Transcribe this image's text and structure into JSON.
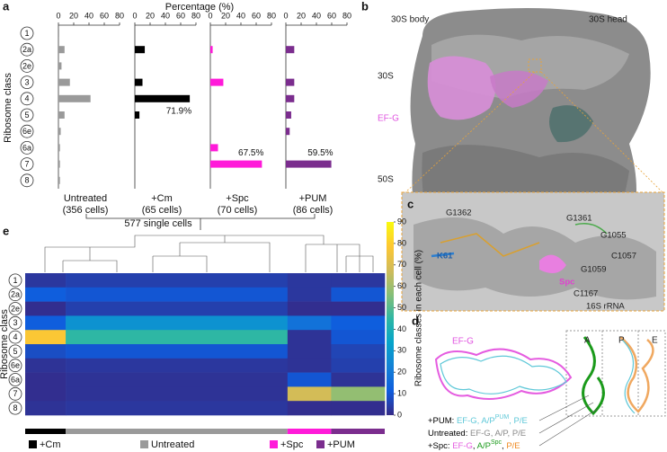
{
  "chart_data": [
    {
      "type": "bar",
      "orientation": "horizontal",
      "xlabel": "Percentage (%)",
      "ylabel": "Ribosome class",
      "categories": [
        "1",
        "2a",
        "2e",
        "3",
        "4",
        "5",
        "6e",
        "6a",
        "7",
        "8"
      ],
      "xlim": [
        0,
        80
      ],
      "xticks": [
        0,
        20,
        40,
        60,
        80
      ],
      "series": [
        {
          "name": "Untreated",
          "subtitle": "(356 cells)",
          "color": "#9a9a9a",
          "values": [
            1,
            8,
            4,
            15,
            42,
            8,
            3,
            2,
            2,
            2
          ]
        },
        {
          "name": "+Cm",
          "subtitle": "(65 cells)",
          "color": "#000000",
          "values": [
            0,
            13,
            0,
            10,
            71.9,
            6,
            0,
            0,
            0,
            0
          ],
          "value_labels": [
            null,
            null,
            null,
            null,
            "71.9%",
            null,
            null,
            null,
            null,
            null
          ]
        },
        {
          "name": "+Spc",
          "subtitle": "(70 cells)",
          "color": "#ff1ad9",
          "values": [
            0,
            3,
            0,
            17,
            0,
            0,
            0,
            10,
            67.5,
            0
          ],
          "value_labels": [
            null,
            null,
            null,
            null,
            null,
            null,
            null,
            null,
            "67.5%",
            null
          ]
        },
        {
          "name": "+PUM",
          "subtitle": "(86 cells)",
          "color": "#7b2d8e",
          "values": [
            0,
            11,
            0,
            11,
            11,
            7,
            5,
            0,
            59.5,
            0
          ],
          "value_labels": [
            null,
            null,
            null,
            null,
            null,
            null,
            null,
            null,
            "59.5%",
            null
          ]
        }
      ],
      "total_label": "577 single cells"
    },
    {
      "type": "heatmap",
      "ylabel": "Ribosome class",
      "categories": [
        "1",
        "2a",
        "2e",
        "3",
        "4",
        "5",
        "6e",
        "6a",
        "7",
        "8"
      ],
      "groups": [
        {
          "name": "+Cm",
          "cells": 65,
          "color": "#000000"
        },
        {
          "name": "Untreated",
          "cells": 356,
          "color": "#9a9a9a"
        },
        {
          "name": "+Spc",
          "cells": 70,
          "color": "#ff1ad9"
        },
        {
          "name": "+PUM",
          "cells": 86,
          "color": "#7b2d8e"
        }
      ],
      "values": [
        [
          3,
          5,
          3,
          3
        ],
        [
          12,
          10,
          3,
          10
        ],
        [
          1,
          5,
          1,
          1
        ],
        [
          12,
          28,
          18,
          12
        ],
        [
          78,
          45,
          2,
          10
        ],
        [
          8,
          10,
          2,
          6
        ],
        [
          2,
          3,
          2,
          5
        ],
        [
          1,
          2,
          10,
          2
        ],
        [
          1,
          2,
          68,
          58
        ],
        [
          2,
          3,
          1,
          1
        ]
      ],
      "zlim": [
        0,
        90
      ],
      "zticks": [
        0,
        10,
        20,
        30,
        40,
        50,
        60,
        70,
        80,
        90
      ],
      "colorbar_label": "Ribosome classes in each cell (%)",
      "colormap": [
        "#352a87",
        "#0f5cdd",
        "#1481d6",
        "#06a4ca",
        "#2eb7a4",
        "#87bf77",
        "#d1bb59",
        "#fec832",
        "#f9fb0e"
      ]
    }
  ],
  "figure": {
    "panel_labels": [
      "a",
      "b",
      "c",
      "d",
      "e"
    ],
    "b_labels": [
      "30S body",
      "30S head",
      "30S",
      "EF-G",
      "50S"
    ],
    "c_labels": [
      "G1362",
      "G1361",
      "G1055",
      "C1057",
      "G1059",
      "C1167",
      "16S rRNA",
      "K61",
      "Spc"
    ],
    "d_labels": [
      "EF-G",
      "A",
      "P",
      "E"
    ],
    "d_legend": [
      [
        {
          "text": "+PUM: ",
          "color": "#000000"
        },
        {
          "text": "EF-G, A/P",
          "color": "#5fc8d8"
        },
        {
          "text": "PUM",
          "color": "#5fc8d8",
          "sup": true
        },
        {
          "text": ", P/E",
          "color": "#5fc8d8"
        }
      ],
      [
        {
          "text": "Untreated: ",
          "color": "#000000"
        },
        {
          "text": "EF-G, A/P, P/E",
          "color": "#8a8a8a"
        }
      ],
      [
        {
          "text": "+Spc: ",
          "color": "#000000"
        },
        {
          "text": "EF-G",
          "color": "#e55ce0"
        },
        {
          "text": ", ",
          "color": "#000000"
        },
        {
          "text": "A/P",
          "color": "#1a9a1a"
        },
        {
          "text": "Spc",
          "color": "#1a9a1a",
          "sup": true
        },
        {
          "text": ", ",
          "color": "#000000"
        },
        {
          "text": "P/E",
          "color": "#f08a20"
        }
      ]
    ]
  }
}
